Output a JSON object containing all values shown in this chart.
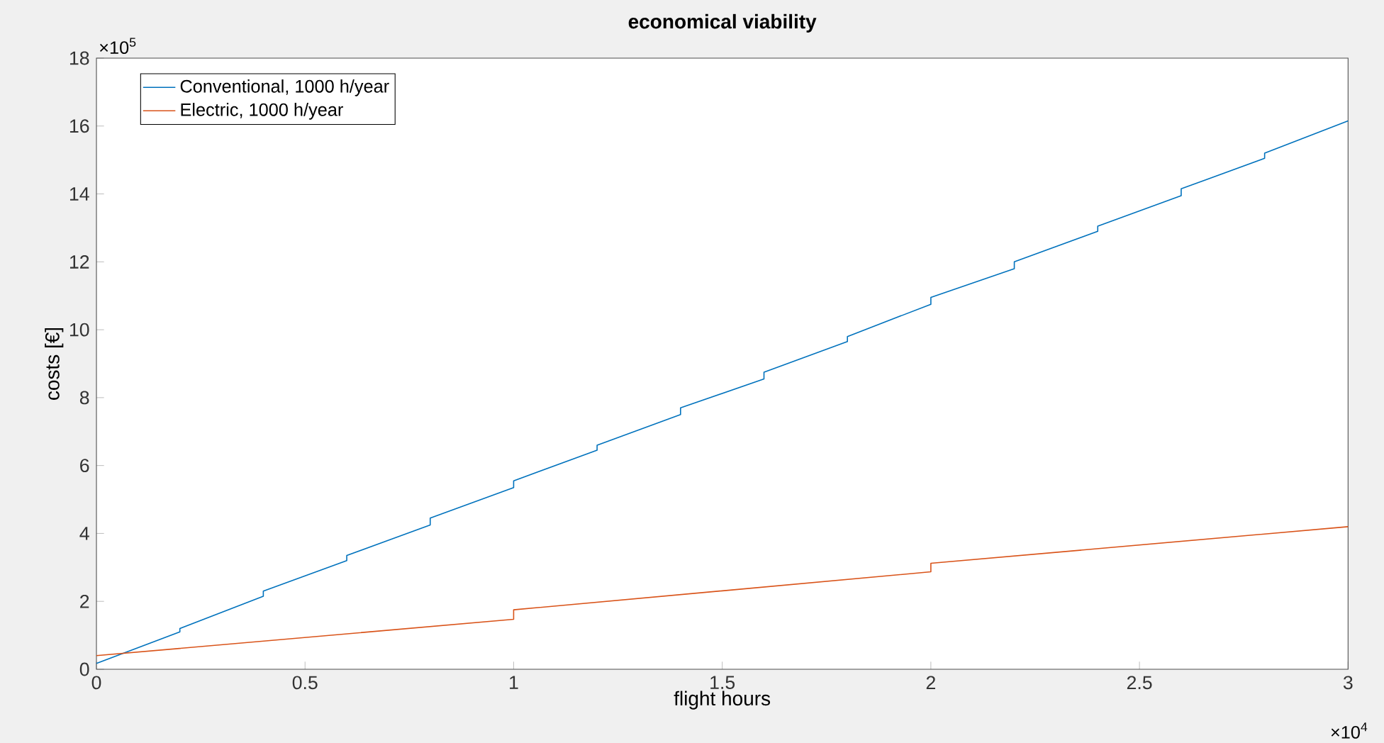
{
  "chart_data": {
    "type": "line",
    "title": "economical viability",
    "xlabel": "flight hours",
    "ylabel": "costs [€]",
    "annotations": [
      "×10$^{5}$",
      "×10$^{4}$"
    ],
    "series": [
      {
        "name": "Conventional, 1000 h/year",
        "color": "#0072bd",
        "x": [
          0,
          0.2,
          0.2,
          0.4,
          0.4,
          0.6,
          0.6,
          0.8,
          0.8,
          1.0,
          1.0,
          1.2,
          1.2,
          1.4,
          1.4,
          1.6,
          1.6,
          1.8,
          1.8,
          2.0,
          2.0,
          2.2,
          2.2,
          2.4,
          2.4,
          2.6,
          2.6,
          2.8,
          2.8,
          3.0
        ],
        "values": [
          0.17,
          1.1,
          1.2,
          2.15,
          2.3,
          3.2,
          3.35,
          4.25,
          4.45,
          5.35,
          5.55,
          6.45,
          6.6,
          7.5,
          7.7,
          8.55,
          8.75,
          9.65,
          9.8,
          10.75,
          10.95,
          11.8,
          12.0,
          12.9,
          13.05,
          13.95,
          14.15,
          15.05,
          15.2,
          16.15
        ]
      },
      {
        "name": "Electric, 1000 h/year",
        "color": "#d95319",
        "x": [
          0,
          1.0,
          1.0,
          2.0,
          2.0,
          3.0
        ],
        "values": [
          0.4,
          1.47,
          1.75,
          2.87,
          3.12,
          4.2
        ]
      }
    ],
    "xlim": [
      0,
      3
    ],
    "ylim": [
      0,
      18
    ],
    "xticks": [
      0,
      0.5,
      1,
      1.5,
      2,
      2.5,
      3
    ],
    "yticks": [
      0,
      2,
      4,
      6,
      8,
      10,
      12,
      14,
      16,
      18
    ],
    "grid": false,
    "legend": "top left",
    "line_style": "solid",
    "marker": "none"
  }
}
